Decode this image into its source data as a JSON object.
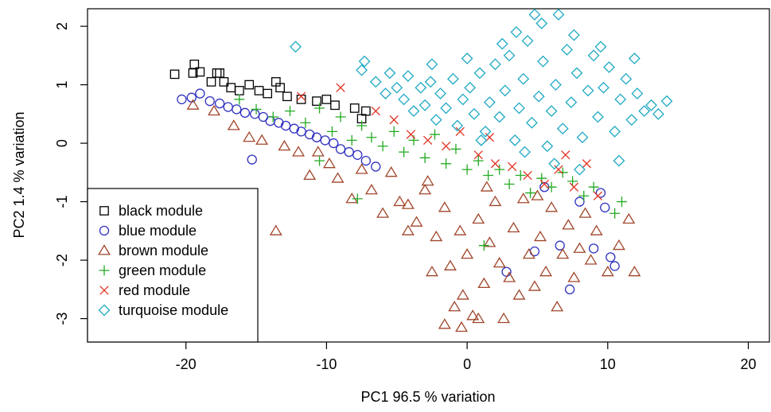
{
  "chart_data": {
    "type": "scatter",
    "title": "",
    "xlabel": "PC1 96.5 % variation",
    "ylabel": "PC2 1.4 % variation",
    "xlim": [
      -27,
      21.5
    ],
    "ylim": [
      -3.4,
      2.3
    ],
    "xticks": [
      "-20",
      "-10",
      "0",
      "10",
      "20"
    ],
    "xtick_values": [
      -20,
      -10,
      0,
      10,
      20
    ],
    "yticks": [
      "-3",
      "-2",
      "-1",
      "0",
      "1",
      "2"
    ],
    "ytick_values": [
      -3,
      -2,
      -1,
      0,
      1,
      2
    ],
    "grid": false,
    "legend_position": "bottom-left",
    "series": [
      {
        "name": "black module",
        "marker": "square",
        "color": "#000000",
        "points": [
          [
            -20.8,
            1.18
          ],
          [
            -19.5,
            1.2
          ],
          [
            -19.4,
            1.35
          ],
          [
            -19.0,
            1.22
          ],
          [
            -18.2,
            1.05
          ],
          [
            -17.8,
            1.2
          ],
          [
            -17.6,
            1.2
          ],
          [
            -17.3,
            1.05
          ],
          [
            -16.8,
            0.95
          ],
          [
            -16.2,
            0.9
          ],
          [
            -15.5,
            1.0
          ],
          [
            -14.8,
            0.9
          ],
          [
            -14.2,
            0.85
          ],
          [
            -13.6,
            1.05
          ],
          [
            -13.3,
            0.95
          ],
          [
            -12.8,
            0.8
          ],
          [
            -11.8,
            0.75
          ],
          [
            -10.7,
            0.72
          ],
          [
            -10.0,
            0.75
          ],
          [
            -9.4,
            0.65
          ],
          [
            -8.0,
            0.6
          ],
          [
            -7.2,
            0.55
          ],
          [
            -7.5,
            0.42
          ]
        ]
      },
      {
        "name": "blue module",
        "marker": "circle",
        "color": "#3030c0",
        "points": [
          [
            -20.3,
            0.75
          ],
          [
            -19.6,
            0.78
          ],
          [
            -19.0,
            0.85
          ],
          [
            -18.3,
            0.72
          ],
          [
            -17.6,
            0.68
          ],
          [
            -17.0,
            0.62
          ],
          [
            -16.4,
            0.58
          ],
          [
            -15.8,
            0.52
          ],
          [
            -15.3,
            -0.28
          ],
          [
            -15.1,
            0.5
          ],
          [
            -14.5,
            0.45
          ],
          [
            -14.0,
            0.38
          ],
          [
            -13.4,
            0.35
          ],
          [
            -12.9,
            0.3
          ],
          [
            -12.3,
            0.25
          ],
          [
            -11.8,
            0.2
          ],
          [
            -11.2,
            0.15
          ],
          [
            -10.7,
            0.1
          ],
          [
            -10.1,
            0.05
          ],
          [
            -9.5,
            0.0
          ],
          [
            -9.0,
            -0.1
          ],
          [
            -8.4,
            -0.15
          ],
          [
            -7.8,
            -0.2
          ],
          [
            -7.2,
            -0.3
          ],
          [
            -6.5,
            -0.4
          ],
          [
            2.8,
            -2.2
          ],
          [
            4.8,
            -1.85
          ],
          [
            5.5,
            -0.75
          ],
          [
            6.6,
            -1.75
          ],
          [
            7.3,
            -2.5
          ],
          [
            8.0,
            -1.0
          ],
          [
            9.0,
            -1.8
          ],
          [
            9.5,
            -0.85
          ],
          [
            10.2,
            -1.95
          ],
          [
            10.5,
            -2.1
          ],
          [
            9.8,
            -1.1
          ]
        ]
      },
      {
        "name": "brown module",
        "marker": "triangle",
        "color": "#a0452a",
        "points": [
          [
            -19.5,
            0.65
          ],
          [
            -18.0,
            0.55
          ],
          [
            -16.6,
            0.3
          ],
          [
            -15.5,
            0.1
          ],
          [
            -14.6,
            0.05
          ],
          [
            -13.6,
            -1.5
          ],
          [
            -13.0,
            -0.05
          ],
          [
            -12.0,
            -0.15
          ],
          [
            -11.2,
            -0.55
          ],
          [
            -10.6,
            -0.15
          ],
          [
            -9.8,
            -0.35
          ],
          [
            -9.2,
            -0.6
          ],
          [
            -8.2,
            -0.95
          ],
          [
            -7.5,
            -0.45
          ],
          [
            -6.8,
            -0.8
          ],
          [
            -6.0,
            -1.2
          ],
          [
            -5.4,
            -0.5
          ],
          [
            -4.8,
            -1.0
          ],
          [
            -4.2,
            -1.5
          ],
          [
            -3.6,
            -1.35
          ],
          [
            -3.0,
            -0.8
          ],
          [
            -2.5,
            -2.2
          ],
          [
            -2.2,
            -1.6
          ],
          [
            -1.6,
            -1.1
          ],
          [
            -1.2,
            -2.1
          ],
          [
            -0.9,
            -2.8
          ],
          [
            -0.5,
            -1.5
          ],
          [
            -0.3,
            -2.6
          ],
          [
            0.0,
            -1.9
          ],
          [
            0.4,
            -2.95
          ],
          [
            0.8,
            -1.3
          ],
          [
            1.2,
            -2.4
          ],
          [
            1.6,
            -1.7
          ],
          [
            2.0,
            -1.0
          ],
          [
            2.3,
            -2.05
          ],
          [
            2.6,
            -3.0
          ],
          [
            3.0,
            -2.3
          ],
          [
            3.3,
            -1.45
          ],
          [
            3.7,
            -2.6
          ],
          [
            4.0,
            -0.95
          ],
          [
            4.4,
            -1.9
          ],
          [
            4.8,
            -2.45
          ],
          [
            5.2,
            -1.6
          ],
          [
            5.6,
            -2.2
          ],
          [
            6.0,
            -1.1
          ],
          [
            6.4,
            -2.8
          ],
          [
            6.8,
            -1.9
          ],
          [
            7.2,
            -1.4
          ],
          [
            7.6,
            -2.3
          ],
          [
            8.0,
            -1.8
          ],
          [
            8.4,
            -1.2
          ],
          [
            8.8,
            -2.0
          ],
          [
            9.2,
            -1.5
          ],
          [
            10.0,
            -2.2
          ],
          [
            10.8,
            -1.75
          ],
          [
            11.5,
            -1.3
          ],
          [
            11.9,
            -2.2
          ],
          [
            -0.4,
            -3.15
          ],
          [
            0.8,
            -3.0
          ],
          [
            -1.6,
            -3.1
          ],
          [
            -4.2,
            -1.05
          ],
          [
            -2.8,
            -0.65
          ],
          [
            1.4,
            -0.75
          ],
          [
            5.0,
            -0.9
          ]
        ]
      },
      {
        "name": "green module",
        "marker": "plus",
        "color": "#22aa22",
        "points": [
          [
            -16.2,
            0.75
          ],
          [
            -15.0,
            0.58
          ],
          [
            -13.8,
            0.45
          ],
          [
            -12.6,
            0.55
          ],
          [
            -11.5,
            0.35
          ],
          [
            -10.5,
            0.6
          ],
          [
            -9.6,
            0.2
          ],
          [
            -9.0,
            0.45
          ],
          [
            -8.2,
            0.05
          ],
          [
            -7.5,
            0.3
          ],
          [
            -6.8,
            0.1
          ],
          [
            -6.0,
            -0.05
          ],
          [
            -5.2,
            0.2
          ],
          [
            -4.5,
            -0.15
          ],
          [
            -3.8,
            0.05
          ],
          [
            -3.0,
            -0.25
          ],
          [
            -2.3,
            0.15
          ],
          [
            -1.5,
            -0.35
          ],
          [
            -0.8,
            -0.1
          ],
          [
            0.0,
            -0.45
          ],
          [
            0.8,
            -0.3
          ],
          [
            1.5,
            -0.55
          ],
          [
            2.3,
            -0.45
          ],
          [
            3.0,
            -0.7
          ],
          [
            3.8,
            -0.55
          ],
          [
            4.5,
            -0.85
          ],
          [
            5.3,
            -0.6
          ],
          [
            6.0,
            -0.75
          ],
          [
            6.8,
            -0.5
          ],
          [
            7.5,
            -0.65
          ],
          [
            8.3,
            -0.9
          ],
          [
            9.0,
            -0.75
          ],
          [
            10.5,
            -1.2
          ],
          [
            11.0,
            -1.0
          ],
          [
            1.2,
            -1.75
          ],
          [
            -7.8,
            -0.95
          ],
          [
            -10.5,
            -0.3
          ]
        ]
      },
      {
        "name": "red module",
        "marker": "x",
        "color": "#e03020",
        "points": [
          [
            -11.8,
            0.8
          ],
          [
            -9.0,
            0.95
          ],
          [
            -6.5,
            0.55
          ],
          [
            -5.2,
            0.4
          ],
          [
            -4.0,
            0.15
          ],
          [
            -2.8,
            0.05
          ],
          [
            -1.5,
            -0.05
          ],
          [
            -0.5,
            0.2
          ],
          [
            0.8,
            -0.2
          ],
          [
            2.0,
            -0.35
          ],
          [
            3.2,
            -0.4
          ],
          [
            4.3,
            -0.55
          ],
          [
            5.5,
            -0.7
          ],
          [
            6.5,
            -0.45
          ],
          [
            7.6,
            -0.75
          ],
          [
            8.5,
            -0.35
          ],
          [
            9.3,
            -0.9
          ],
          [
            7.0,
            -0.2
          ],
          [
            1.6,
            0.1
          ]
        ]
      },
      {
        "name": "turquoise module",
        "marker": "diamond",
        "color": "#1ea9c3",
        "points": [
          [
            -12.2,
            1.65
          ],
          [
            -7.3,
            1.4
          ],
          [
            -7.5,
            1.25
          ],
          [
            -6.5,
            1.05
          ],
          [
            -5.8,
            0.85
          ],
          [
            -5.5,
            1.2
          ],
          [
            -5.0,
            0.95
          ],
          [
            -4.5,
            0.75
          ],
          [
            -4.2,
            1.15
          ],
          [
            -3.8,
            0.55
          ],
          [
            -3.3,
            0.95
          ],
          [
            -3.0,
            0.65
          ],
          [
            -2.6,
            1.05
          ],
          [
            -2.2,
            0.4
          ],
          [
            -1.9,
            0.85
          ],
          [
            -1.5,
            0.6
          ],
          [
            -1.0,
            1.1
          ],
          [
            -0.7,
            0.3
          ],
          [
            -0.3,
            0.75
          ],
          [
            0.2,
            0.95
          ],
          [
            0.5,
            0.5
          ],
          [
            0.9,
            1.2
          ],
          [
            1.3,
            0.2
          ],
          [
            1.6,
            0.7
          ],
          [
            2.0,
            1.35
          ],
          [
            2.3,
            0.45
          ],
          [
            2.7,
            0.9
          ],
          [
            3.0,
            1.5
          ],
          [
            3.4,
            0.05
          ],
          [
            3.7,
            0.6
          ],
          [
            4.0,
            1.1
          ],
          [
            4.3,
            1.75
          ],
          [
            4.6,
            0.35
          ],
          [
            4.8,
            2.2
          ],
          [
            5.1,
            0.8
          ],
          [
            5.4,
            1.4
          ],
          [
            5.7,
            -0.05
          ],
          [
            6.0,
            0.55
          ],
          [
            6.3,
            1.0
          ],
          [
            6.5,
            2.2
          ],
          [
            6.8,
            0.25
          ],
          [
            7.1,
            1.6
          ],
          [
            7.4,
            0.7
          ],
          [
            7.8,
            1.2
          ],
          [
            8.2,
            0.1
          ],
          [
            8.6,
            0.9
          ],
          [
            9.0,
            1.5
          ],
          [
            9.3,
            0.45
          ],
          [
            9.7,
            0.95
          ],
          [
            10.1,
            1.3
          ],
          [
            10.5,
            0.2
          ],
          [
            10.9,
            0.75
          ],
          [
            11.3,
            1.1
          ],
          [
            11.7,
            0.4
          ],
          [
            12.1,
            0.85
          ],
          [
            12.6,
            0.55
          ],
          [
            13.1,
            0.65
          ],
          [
            13.6,
            0.5
          ],
          [
            14.2,
            0.72
          ],
          [
            8.0,
            -0.45
          ],
          [
            6.2,
            -0.35
          ],
          [
            9.5,
            1.65
          ],
          [
            3.5,
            1.9
          ],
          [
            5.3,
            2.05
          ],
          [
            2.5,
            1.7
          ],
          [
            7.6,
            1.85
          ],
          [
            10.8,
            -0.3
          ],
          [
            11.9,
            1.45
          ],
          [
            0.0,
            1.45
          ],
          [
            -2.5,
            1.35
          ],
          [
            1.0,
            0.05
          ],
          [
            4.1,
            -0.15
          ]
        ]
      }
    ]
  }
}
